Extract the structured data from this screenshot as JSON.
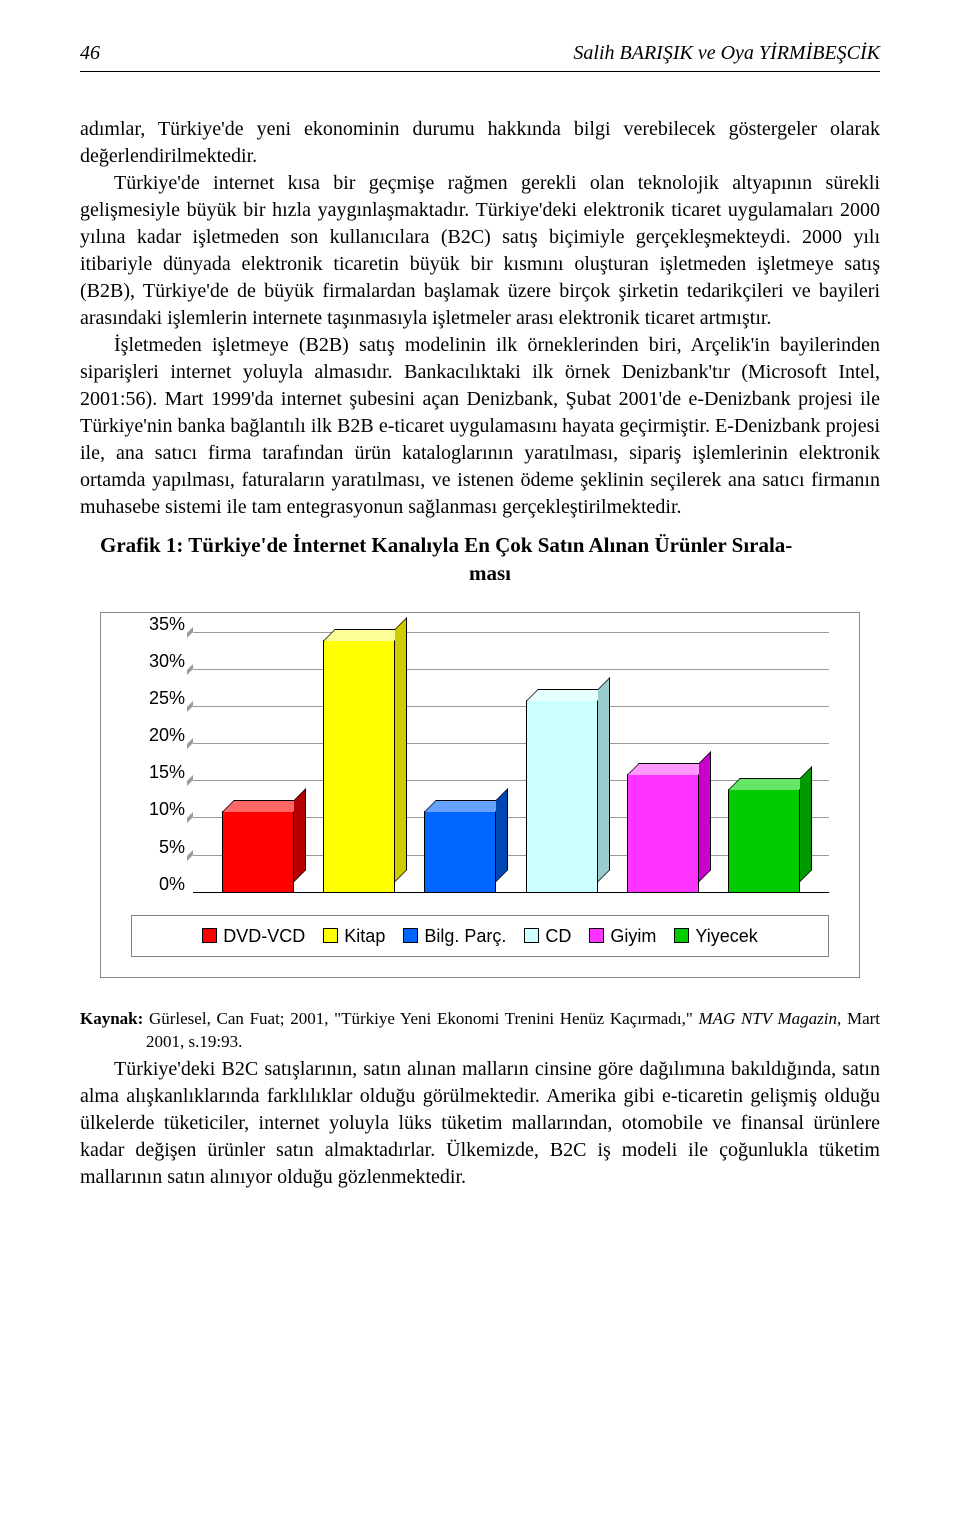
{
  "header": {
    "page_number": "46",
    "authors": "Salih BARIŞIK ve Oya YİRMİBEŞCİK"
  },
  "paragraphs": {
    "p1": "adımlar, Türkiye'de yeni ekonominin durumu hakkında bilgi verebilecek göstergeler olarak değerlendirilmektedir.",
    "p2": "Türkiye'de internet kısa bir geçmişe rağmen gerekli olan teknolojik altyapının sürekli gelişmesiyle büyük bir hızla yaygınlaşmaktadır. Türkiye'deki elektronik ticaret uygulamaları 2000 yılına kadar işletmeden son kullanıcılara (B2C) satış biçimiyle gerçekleşmekteydi. 2000 yılı itibariyle dünyada elektronik ticaretin büyük bir kısmını oluşturan işletmeden işletmeye satış (B2B), Türkiye'de de büyük firmalardan başlamak üzere birçok şirketin tedarikçileri ve bayileri arasındaki işlemlerin internete taşınmasıyla işletmeler arası elektronik ticaret artmıştır.",
    "p3": "İşletmeden işletmeye (B2B) satış modelinin ilk örneklerinden biri, Arçelik'in bayilerinden siparişleri internet yoluyla almasıdır. Bankacılıktaki ilk örnek Denizbank'tır (Microsoft Intel, 2001:56). Mart 1999'da internet şubesini açan Denizbank, Şubat 2001'de e-Denizbank projesi ile Türkiye'nin banka bağlantılı ilk B2B e-ticaret uygulamasını hayata geçirmiştir. E-Denizbank projesi ile, ana satıcı firma tarafından ürün kataloglarının yaratılması, sipariş işlemlerinin elektronik ortamda yapılması, faturaların yaratılması, ve istenen ödeme şeklinin seçilerek ana satıcı firmanın muhasebe sistemi ile tam entegrasyonun sağlanması gerçekleştirilmektedir."
  },
  "chart": {
    "title_line1": "Grafik 1: Türkiye'de İnternet Kanalıyla En Çok Satın Alınan Ürünler Sırala-",
    "title_line2": "ması",
    "type": "bar-3d",
    "ylim_max": 35,
    "ylim_min": 0,
    "ytick_step": 5,
    "y_ticks": [
      "35%",
      "30%",
      "25%",
      "20%",
      "15%",
      "10%",
      "5%",
      "0%"
    ],
    "series": [
      {
        "label": "DVD-VCD",
        "value": 11,
        "front": "#ff0000",
        "top": "#ff6666",
        "side": "#b30000"
      },
      {
        "label": "Kitap",
        "value": 34,
        "front": "#ffff00",
        "top": "#ffff99",
        "side": "#cccc00"
      },
      {
        "label": "Bilg. Parç.",
        "value": 11,
        "front": "#0066ff",
        "top": "#66a3ff",
        "side": "#0047b3"
      },
      {
        "label": "CD",
        "value": 26,
        "front": "#ccffff",
        "top": "#e6ffff",
        "side": "#99cccc"
      },
      {
        "label": "Giyim",
        "value": 16,
        "front": "#ff33ff",
        "top": "#ff99ff",
        "side": "#cc00cc"
      },
      {
        "label": "Yiyecek",
        "value": 14,
        "front": "#00cc00",
        "top": "#66e666",
        "side": "#009900"
      }
    ],
    "grid_color": "#9a9a9a",
    "background_color": "#ffffff",
    "border_color": "#868686",
    "legend_font_family": "Arial",
    "axis_font_family": "Arial",
    "axis_fontsize": 18,
    "legend_fontsize": 18
  },
  "kaynak": {
    "label": "Kaynak:",
    "text_before_italic": " Gürlesel, Can Fuat; 2001, \"Türkiye Yeni Ekonomi Trenini Henüz Kaçırmadı,\" ",
    "italic": "MAG NTV Magazin",
    "text_after_italic": ", Mart 2001, s.19:93."
  },
  "p_after": "Türkiye'deki B2C satışlarının, satın alınan malların cinsine göre dağılımına bakıldığında, satın alma alışkanlıklarında farklılıklar olduğu görülmektedir. Amerika gibi e-ticaretin gelişmiş olduğu ülkelerde tüketiciler, internet yoluyla lüks tüketim mallarından, otomobile ve finansal ürünlere kadar değişen ürünler satın almaktadırlar. Ülkemizde, B2C iş modeli ile çoğunlukla tüketim mallarının satın alınıyor olduğu gözlenmektedir."
}
